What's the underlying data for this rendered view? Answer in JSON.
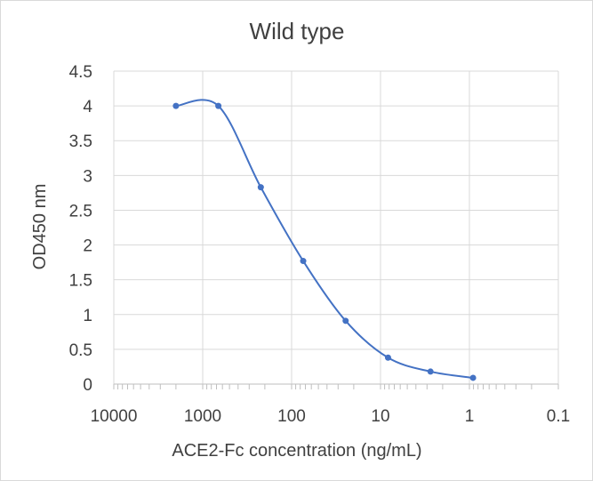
{
  "chart_data": {
    "type": "scatter",
    "title": "Wild type",
    "xlabel": "ACE2-Fc concentration (ng/mL)",
    "ylabel": "OD450 nm",
    "x_scale": "log",
    "x_reversed": true,
    "xlim": [
      10000,
      0.1
    ],
    "ylim": [
      0,
      4.5
    ],
    "x_ticks": [
      "10000",
      "1000",
      "100",
      "10",
      "1",
      "0.1"
    ],
    "y_ticks": [
      "0",
      "0.5",
      "1",
      "1.5",
      "2",
      "2.5",
      "3",
      "3.5",
      "4",
      "4.5"
    ],
    "grid": true,
    "legend": "none",
    "series": [
      {
        "color": "#4472c4",
        "smooth_line": true,
        "points": [
          {
            "x": 2000,
            "y": 4.0
          },
          {
            "x": 666.7,
            "y": 4.0
          },
          {
            "x": 222.2,
            "y": 2.83
          },
          {
            "x": 74.07,
            "y": 1.77
          },
          {
            "x": 24.69,
            "y": 0.91
          },
          {
            "x": 8.23,
            "y": 0.38
          },
          {
            "x": 2.74,
            "y": 0.18
          },
          {
            "x": 0.91,
            "y": 0.09
          }
        ]
      }
    ]
  }
}
